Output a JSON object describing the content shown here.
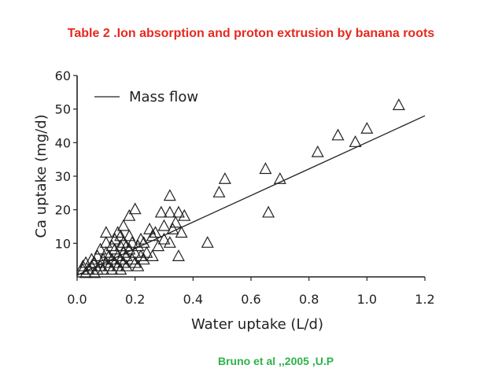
{
  "slide": {
    "title": "Table 2  .Ion absorption and proton extrusion by banana roots",
    "citation": "Bruno et al ,,2005 ,U.P"
  },
  "colors": {
    "title": "#e8281e",
    "citation": "#2db34a",
    "ink": "#222222"
  },
  "chart_data": {
    "type": "scatter",
    "title": "",
    "xlabel": "Water uptake (L/d)",
    "ylabel": "Ca uptake (mg/d)",
    "xlim": [
      0,
      1.2
    ],
    "ylim": [
      0,
      60
    ],
    "x_ticks": [
      0.0,
      0.2,
      0.4,
      0.6,
      0.8,
      1.0,
      1.2
    ],
    "x_tick_labels": [
      "0.0",
      "0.2",
      "0.4",
      "0.6",
      "0.8",
      "1.0",
      "1.2"
    ],
    "y_ticks": [
      10,
      20,
      30,
      40,
      50,
      60
    ],
    "y_tick_labels": [
      "10",
      "20",
      "30",
      "40",
      "50",
      "60"
    ],
    "grid": false,
    "legend": {
      "position": "top-left",
      "entries": [
        "Mass flow"
      ]
    },
    "marker": "open-triangle",
    "fit_line": {
      "name": "Mass flow",
      "x": [
        0.0,
        1.2
      ],
      "y": [
        0.5,
        48.0
      ]
    },
    "points": [
      [
        0.02,
        2
      ],
      [
        0.02,
        3
      ],
      [
        0.03,
        1
      ],
      [
        0.03,
        4
      ],
      [
        0.04,
        2
      ],
      [
        0.05,
        3
      ],
      [
        0.05,
        5
      ],
      [
        0.06,
        1
      ],
      [
        0.06,
        4
      ],
      [
        0.07,
        2
      ],
      [
        0.07,
        6
      ],
      [
        0.08,
        3
      ],
      [
        0.08,
        8
      ],
      [
        0.09,
        2
      ],
      [
        0.09,
        5
      ],
      [
        0.1,
        4
      ],
      [
        0.1,
        7
      ],
      [
        0.1,
        10
      ],
      [
        0.1,
        13
      ],
      [
        0.11,
        3
      ],
      [
        0.11,
        6
      ],
      [
        0.12,
        2
      ],
      [
        0.12,
        5
      ],
      [
        0.12,
        9
      ],
      [
        0.13,
        4
      ],
      [
        0.13,
        8
      ],
      [
        0.13,
        11
      ],
      [
        0.14,
        3
      ],
      [
        0.14,
        6
      ],
      [
        0.14,
        13
      ],
      [
        0.15,
        2
      ],
      [
        0.15,
        5
      ],
      [
        0.15,
        9
      ],
      [
        0.15,
        12
      ],
      [
        0.16,
        4
      ],
      [
        0.16,
        7
      ],
      [
        0.16,
        10
      ],
      [
        0.16,
        15
      ],
      [
        0.17,
        3
      ],
      [
        0.17,
        6
      ],
      [
        0.17,
        9
      ],
      [
        0.18,
        8
      ],
      [
        0.18,
        12
      ],
      [
        0.18,
        18
      ],
      [
        0.19,
        5
      ],
      [
        0.19,
        10
      ],
      [
        0.2,
        4
      ],
      [
        0.2,
        7
      ],
      [
        0.2,
        20
      ],
      [
        0.21,
        3
      ],
      [
        0.21,
        9
      ],
      [
        0.22,
        6
      ],
      [
        0.22,
        11
      ],
      [
        0.23,
        5
      ],
      [
        0.23,
        10
      ],
      [
        0.24,
        7
      ],
      [
        0.25,
        14
      ],
      [
        0.26,
        6
      ],
      [
        0.26,
        12
      ],
      [
        0.27,
        13
      ],
      [
        0.28,
        9
      ],
      [
        0.29,
        19
      ],
      [
        0.3,
        11
      ],
      [
        0.3,
        15
      ],
      [
        0.32,
        10
      ],
      [
        0.32,
        19
      ],
      [
        0.32,
        24
      ],
      [
        0.33,
        14
      ],
      [
        0.34,
        16
      ],
      [
        0.35,
        19
      ],
      [
        0.35,
        6
      ],
      [
        0.36,
        13
      ],
      [
        0.37,
        18
      ],
      [
        0.45,
        10
      ],
      [
        0.49,
        25
      ],
      [
        0.51,
        29
      ],
      [
        0.65,
        32
      ],
      [
        0.66,
        19
      ],
      [
        0.7,
        29
      ],
      [
        0.83,
        37
      ],
      [
        0.9,
        42
      ],
      [
        0.96,
        40
      ],
      [
        1.0,
        44
      ],
      [
        1.11,
        51
      ]
    ]
  }
}
